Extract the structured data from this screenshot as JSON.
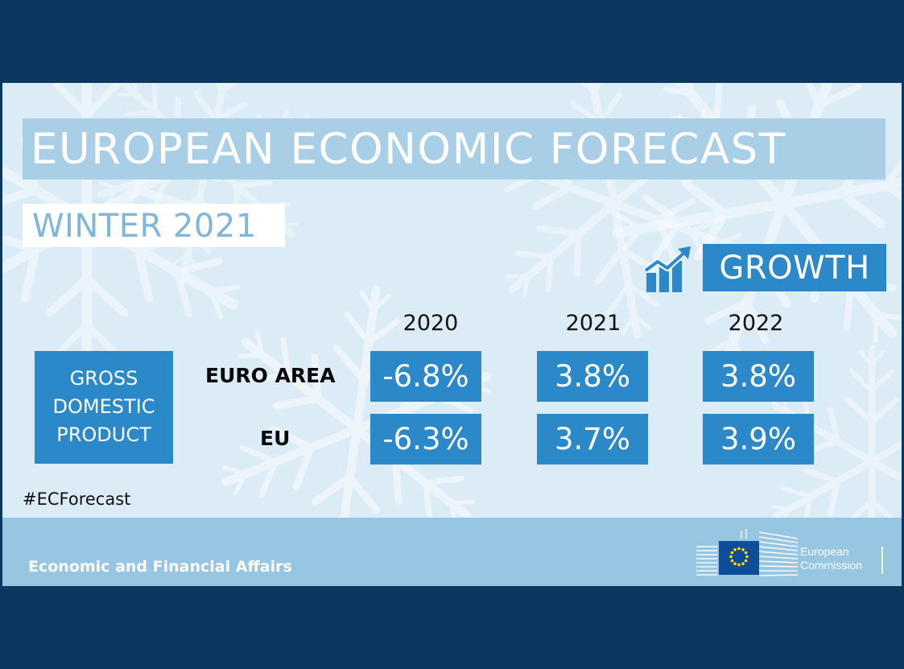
{
  "title": "EUROPEAN ECONOMIC FORECAST",
  "subtitle": "WINTER 2021",
  "growth_label": "GROWTH",
  "gdp_label_lines": [
    "GROSS",
    "DOMESTIC",
    "PRODUCT"
  ],
  "years": [
    "2020",
    "2021",
    "2022"
  ],
  "rows": [
    {
      "label": "EURO AREA",
      "values": [
        "-6.8%",
        "3.8%",
        "3.8%"
      ]
    },
    {
      "label": "EU",
      "values": [
        "-6.3%",
        "3.7%",
        "3.9%"
      ]
    }
  ],
  "hashtag": "#ECForecast",
  "footer_text": "Economic and Financial Affairs",
  "logo_text": [
    "European",
    "Commission"
  ],
  "colors": {
    "outer_background": "#0c3761",
    "card_background": "#dcecf7",
    "accent_blue": "#2c89c9",
    "title_band": "#a9cfe6",
    "footer_band": "#97c6e3",
    "eu_flag": "#0e4d99",
    "eu_stars": "#ffdd00"
  },
  "icons": [
    "growth-chart-icon",
    "eu-flag-icon",
    "berlaymont-building-icon",
    "snowflake-icon"
  ]
}
